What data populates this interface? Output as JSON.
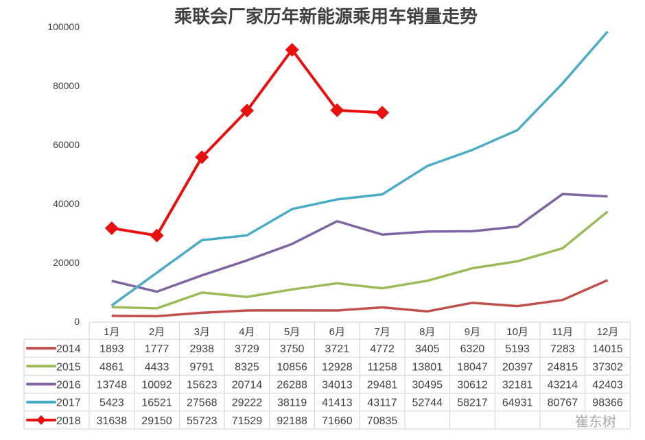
{
  "chart_data": {
    "type": "line",
    "title": "乘联会厂家历年新能源乘用车销量走势",
    "categories": [
      "1月",
      "2月",
      "3月",
      "4月",
      "5月",
      "6月",
      "7月",
      "8月",
      "9月",
      "10月",
      "11月",
      "12月"
    ],
    "ylim": [
      0,
      100000
    ],
    "yticks": [
      "0",
      "20000",
      "40000",
      "60000",
      "80000",
      "100000"
    ],
    "grid": false,
    "legend": "data-table",
    "series": [
      {
        "name": "2014",
        "color": "#c0504d",
        "marker": "none",
        "values": [
          1893,
          1777,
          2938,
          3729,
          3750,
          3721,
          4772,
          3405,
          6320,
          5193,
          7283,
          14015
        ]
      },
      {
        "name": "2015",
        "color": "#9bbb59",
        "marker": "none",
        "values": [
          4861,
          4433,
          9791,
          8325,
          10856,
          12928,
          11258,
          13801,
          18047,
          20397,
          24815,
          37302
        ]
      },
      {
        "name": "2016",
        "color": "#8064a2",
        "marker": "none",
        "values": [
          13748,
          10092,
          15623,
          20714,
          26288,
          34013,
          29481,
          30495,
          30612,
          32181,
          43214,
          42403
        ]
      },
      {
        "name": "2017",
        "color": "#4bacc6",
        "marker": "none",
        "values": [
          5423,
          16521,
          27568,
          29222,
          38119,
          41413,
          43117,
          52744,
          58217,
          64931,
          80767,
          98366
        ]
      },
      {
        "name": "2018",
        "color": "#e8100f",
        "marker": "diamond",
        "values": [
          31638,
          29150,
          55723,
          71529,
          92188,
          71660,
          70835,
          null,
          null,
          null,
          null,
          null
        ]
      }
    ]
  },
  "watermark": "崔东树"
}
